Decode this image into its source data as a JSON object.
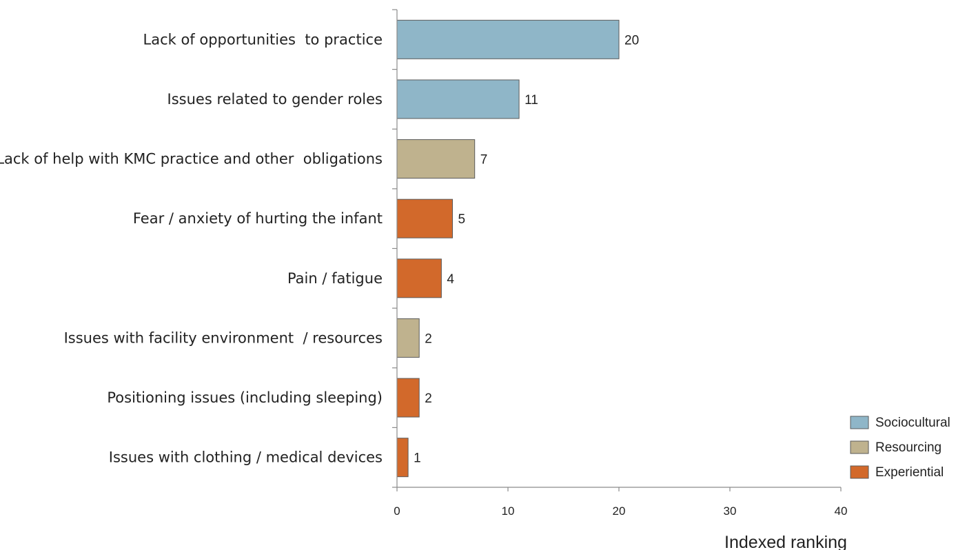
{
  "chart_data": {
    "type": "bar",
    "orientation": "horizontal",
    "categories": [
      "Lack of opportunities  to practice",
      "Issues related to gender roles",
      "Lack of help with KMC practice and other  obligations",
      "Fear / anxiety of hurting the infant",
      "Pain / fatigue",
      "Issues with facility environment  / resources",
      "Positioning issues (including sleeping)",
      "Issues with clothing / medical devices"
    ],
    "values": [
      20,
      11,
      7,
      5,
      4,
      2,
      2,
      1
    ],
    "groups": [
      "Sociocultural",
      "Sociocultural",
      "Resourcing",
      "Experiential",
      "Experiential",
      "Resourcing",
      "Experiential",
      "Experiential"
    ],
    "legend": [
      {
        "name": "Sociocultural",
        "color": "#8fb6c8"
      },
      {
        "name": "Resourcing",
        "color": "#bfb28e"
      },
      {
        "name": "Experiential",
        "color": "#d2692b"
      }
    ],
    "legend_position": "bottom-right",
    "xlabel": "Indexed ranking",
    "xlim": [
      0,
      40
    ],
    "xticks": [
      0,
      10,
      20,
      30,
      40
    ],
    "grid": false
  }
}
